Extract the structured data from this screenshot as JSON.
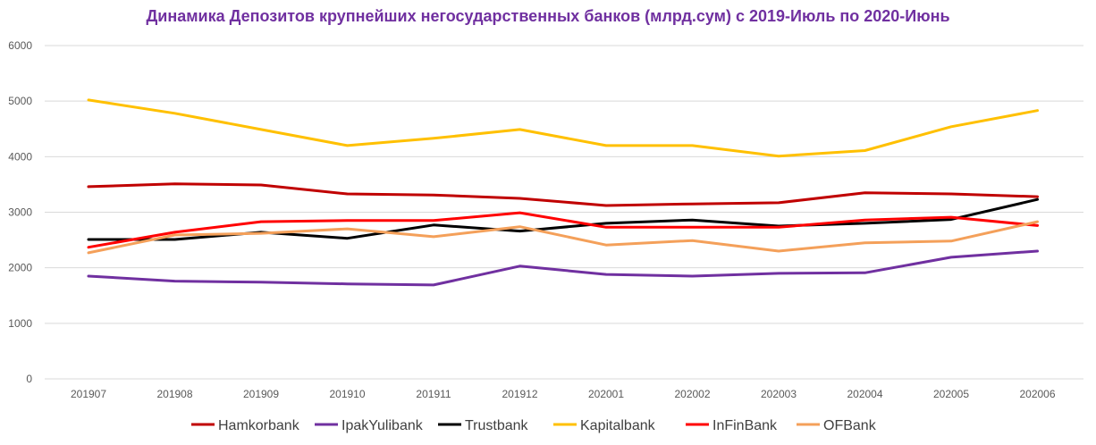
{
  "chart_data": {
    "type": "line",
    "title": "Динамика Депозитов крупнейших негосударственных банков (млрд.сум) с 2019-Июль по 2020-Июнь",
    "xlabel": "",
    "ylabel": "",
    "categories": [
      "201907",
      "201908",
      "201909",
      "201910",
      "201911",
      "201912",
      "202001",
      "202002",
      "202003",
      "202004",
      "202005",
      "202006"
    ],
    "ylim": [
      0,
      6000
    ],
    "yticks": [
      0,
      1000,
      2000,
      3000,
      4000,
      5000,
      6000
    ],
    "grid": true,
    "legend_position": "bottom",
    "series": [
      {
        "name": "Hamkorbank",
        "color": "#C00000",
        "values": [
          3460,
          3510,
          3490,
          3330,
          3310,
          3250,
          3120,
          3150,
          3170,
          3350,
          3330,
          3280
        ]
      },
      {
        "name": "IpakYulibank",
        "color": "#7030A0",
        "values": [
          1850,
          1760,
          1740,
          1710,
          1690,
          2030,
          1880,
          1850,
          1900,
          1910,
          2190,
          2300
        ]
      },
      {
        "name": "Trustbank",
        "color": "#000000",
        "values": [
          2510,
          2510,
          2640,
          2530,
          2770,
          2660,
          2800,
          2860,
          2750,
          2800,
          2870,
          3230
        ]
      },
      {
        "name": "Kapitalbank",
        "color": "#FFC000",
        "values": [
          5020,
          4780,
          4490,
          4200,
          4330,
          4490,
          4200,
          4200,
          4010,
          4110,
          4540,
          4830
        ]
      },
      {
        "name": "InFinBank",
        "color": "#FF0000",
        "values": [
          2370,
          2640,
          2830,
          2850,
          2850,
          2990,
          2730,
          2730,
          2730,
          2860,
          2910,
          2760
        ]
      },
      {
        "name": "OFBank",
        "color": "#F4A05A",
        "values": [
          2270,
          2590,
          2620,
          2700,
          2560,
          2740,
          2410,
          2490,
          2300,
          2450,
          2480,
          2830
        ]
      }
    ]
  }
}
